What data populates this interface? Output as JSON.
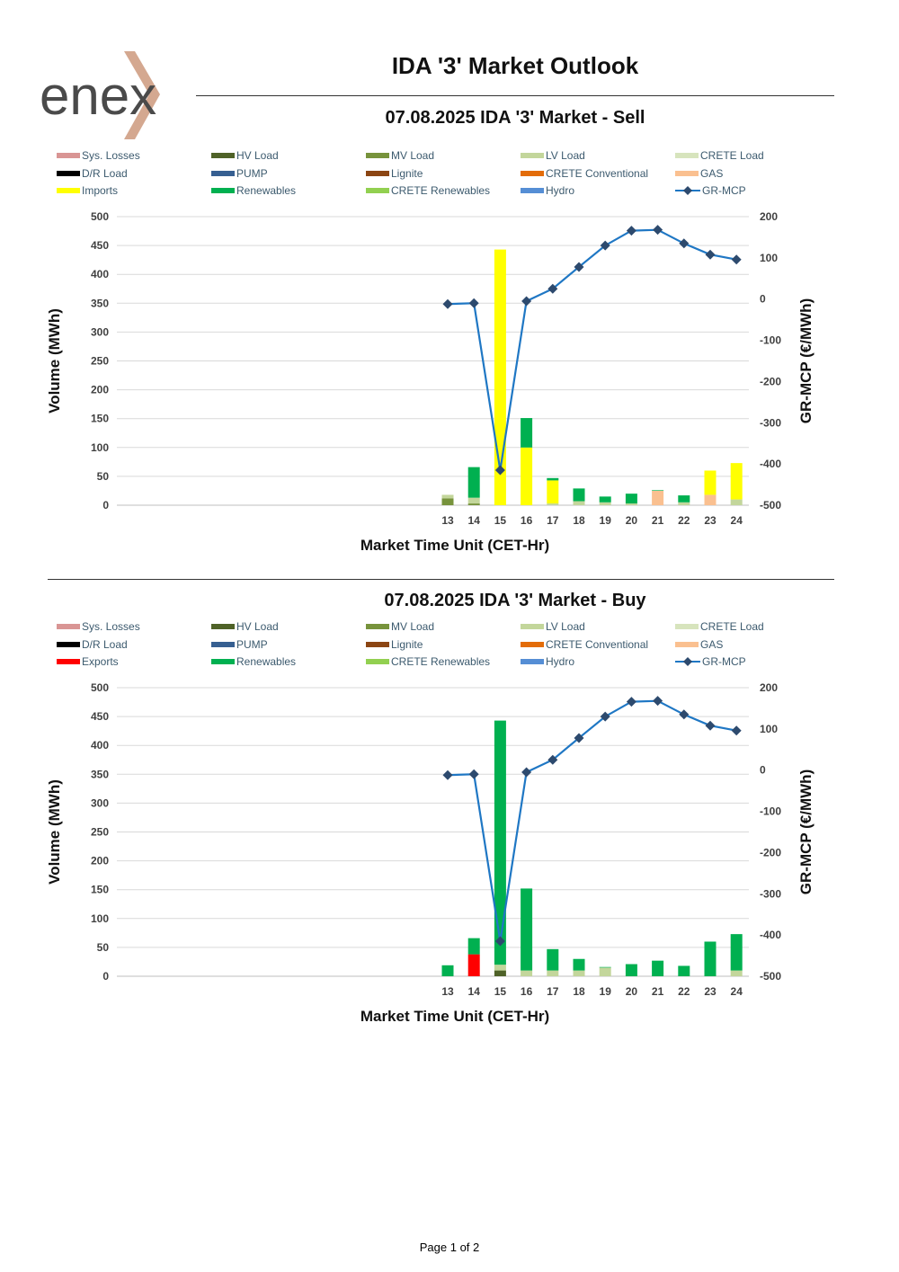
{
  "header": {
    "logo_text": "enex",
    "title": "IDA '3' Market Outlook"
  },
  "footer": {
    "page": "Page 1 of 2"
  },
  "colors": {
    "Sys. Losses": "#d99594",
    "HV Load": "#4f6228",
    "MV Load": "#77933c",
    "LV Load": "#c3d69b",
    "CRETE Load": "#d7e4bd",
    "D/R Load": "#000000",
    "PUMP": "#365f91",
    "Lignite": "#8b4513",
    "CRETE Conventional": "#e36c09",
    "GAS": "#fac090",
    "Imports": "#ffff00",
    "Exports": "#ff0000",
    "Renewables": "#00b050",
    "CRETE Renewables": "#92d050",
    "Hydro": "#558ed5",
    "GR-MCP": "#1f77c4",
    "marker": "#2d4a6e"
  },
  "chart_data": [
    {
      "type": "bar",
      "id": "sell",
      "title": "07.08.2025  IDA '3' Market - Sell",
      "xlabel": "Market Time Unit (CET-Hr)",
      "ylabel": "Volume (MWh)",
      "y2label": "GR-MCP (€/MWh)",
      "categories": [
        "13",
        "14",
        "15",
        "16",
        "17",
        "18",
        "19",
        "20",
        "21",
        "22",
        "23",
        "24"
      ],
      "ylim": [
        0,
        500
      ],
      "y2lim": [
        -500,
        200
      ],
      "yticks": [
        0,
        50,
        100,
        150,
        200,
        250,
        300,
        350,
        400,
        450,
        500
      ],
      "y2ticks": [
        -500,
        -400,
        -300,
        -200,
        -100,
        0,
        100,
        200
      ],
      "legend": [
        "Sys. Losses",
        "HV Load",
        "MV Load",
        "LV Load",
        "CRETE Load",
        "D/R Load",
        "PUMP",
        "Lignite",
        "CRETE Conventional",
        "GAS",
        "Imports",
        "Renewables",
        "CRETE Renewables",
        "Hydro",
        "GR-MCP"
      ],
      "series": [
        {
          "name": "MV Load",
          "values": [
            12,
            3,
            0,
            0,
            0,
            0,
            0,
            0,
            0,
            0,
            0,
            0
          ]
        },
        {
          "name": "LV Load",
          "values": [
            6,
            10,
            0,
            0,
            3,
            7,
            5,
            3,
            0,
            5,
            0,
            10
          ]
        },
        {
          "name": "GAS",
          "values": [
            0,
            0,
            0,
            0,
            0,
            0,
            0,
            0,
            25,
            0,
            18,
            0
          ]
        },
        {
          "name": "Imports",
          "values": [
            0,
            0,
            443,
            100,
            40,
            0,
            0,
            0,
            0,
            0,
            42,
            63
          ]
        },
        {
          "name": "Renewables",
          "values": [
            0,
            53,
            0,
            51,
            4,
            22,
            10,
            17,
            1,
            12,
            0,
            0
          ]
        }
      ],
      "line": {
        "name": "GR-MCP",
        "values": [
          -12,
          -10,
          -415,
          -5,
          25,
          78,
          130,
          166,
          168,
          135,
          108,
          96
        ]
      }
    },
    {
      "type": "bar",
      "id": "buy",
      "title": "07.08.2025  IDA '3' Market - Buy",
      "xlabel": "Market Time Unit (CET-Hr)",
      "ylabel": "Volume (MWh)",
      "y2label": "GR-MCP (€/MWh)",
      "categories": [
        "13",
        "14",
        "15",
        "16",
        "17",
        "18",
        "19",
        "20",
        "21",
        "22",
        "23",
        "24"
      ],
      "ylim": [
        0,
        500
      ],
      "y2lim": [
        -500,
        200
      ],
      "yticks": [
        0,
        50,
        100,
        150,
        200,
        250,
        300,
        350,
        400,
        450,
        500
      ],
      "y2ticks": [
        -500,
        -400,
        -300,
        -200,
        -100,
        0,
        100,
        200
      ],
      "legend": [
        "Sys. Losses",
        "HV Load",
        "MV Load",
        "LV Load",
        "CRETE Load",
        "D/R Load",
        "PUMP",
        "Lignite",
        "CRETE Conventional",
        "GAS",
        "Exports",
        "Renewables",
        "CRETE Renewables",
        "Hydro",
        "GR-MCP"
      ],
      "series": [
        {
          "name": "HV Load",
          "values": [
            0,
            0,
            10,
            0,
            0,
            0,
            0,
            0,
            0,
            0,
            0,
            0
          ]
        },
        {
          "name": "LV Load",
          "values": [
            0,
            0,
            10,
            10,
            10,
            10,
            15,
            0,
            0,
            0,
            0,
            10
          ]
        },
        {
          "name": "Exports",
          "values": [
            0,
            38,
            0,
            0,
            0,
            0,
            0,
            0,
            0,
            0,
            0,
            0
          ]
        },
        {
          "name": "Renewables",
          "values": [
            19,
            28,
            423,
            142,
            37,
            20,
            1,
            21,
            27,
            18,
            60,
            63
          ]
        }
      ],
      "line": {
        "name": "GR-MCP",
        "values": [
          -12,
          -10,
          -415,
          -5,
          25,
          78,
          130,
          166,
          168,
          135,
          108,
          96
        ]
      }
    }
  ]
}
